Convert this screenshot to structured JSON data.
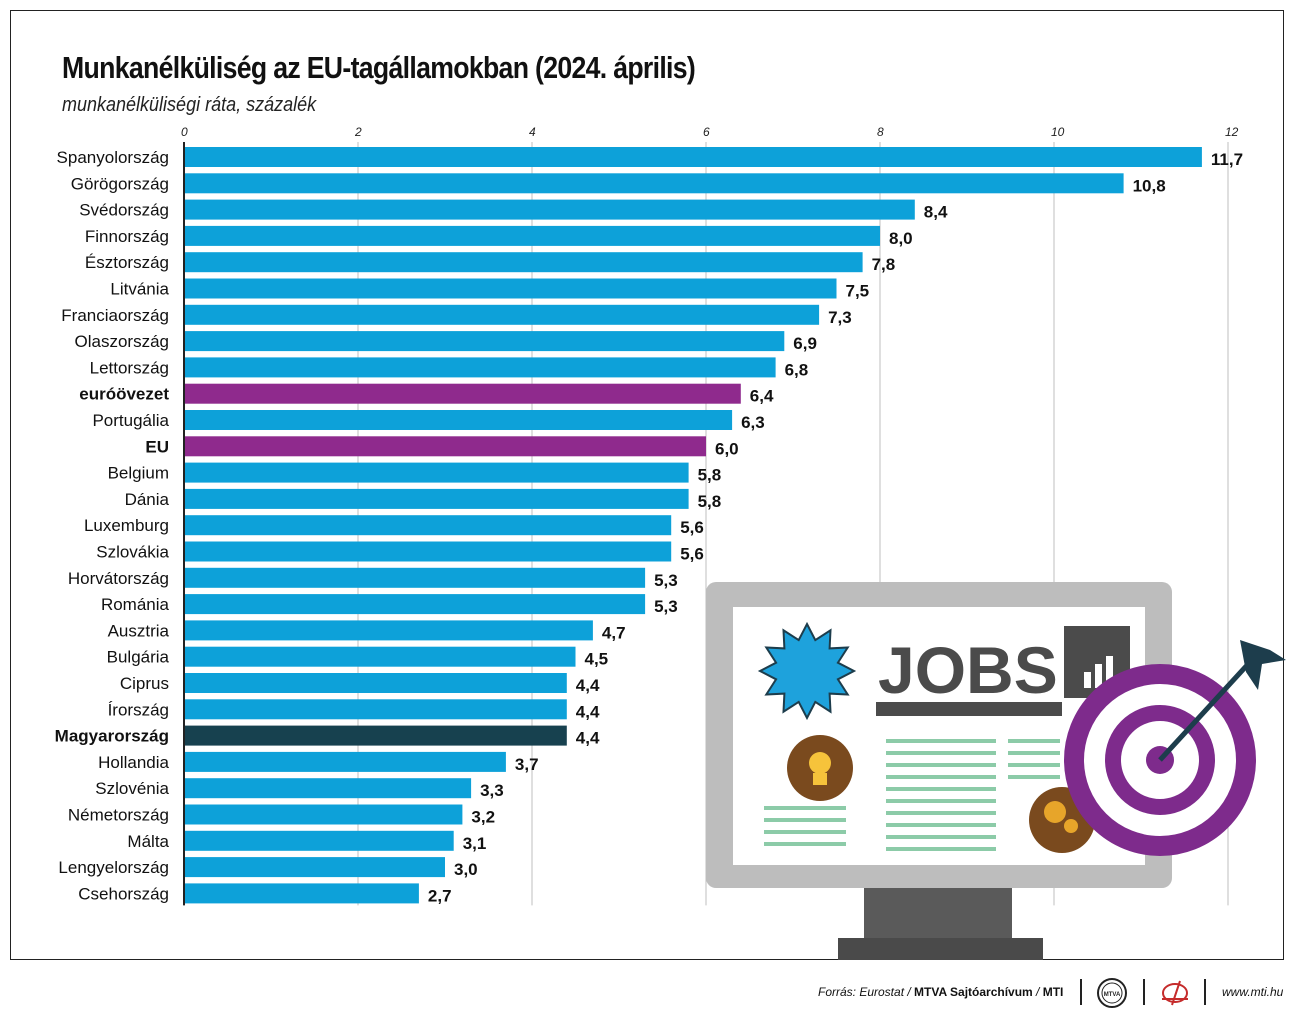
{
  "header": {
    "title": "Munkanélküliség az EU-tagállamokban (2024. április)",
    "subtitle": "munkanélküliségi ráta, százalék"
  },
  "colors": {
    "country": "#0da1d9",
    "aggregate": "#8f2a8d",
    "highlight": "#17414f",
    "accent_purple": "#7e2b8c"
  },
  "chart_data": {
    "type": "bar",
    "orientation": "horizontal",
    "title": "Munkanélküliség az EU-tagállamokban (2024. április)",
    "subtitle": "munkanélküliségi ráta, százalék",
    "xlim": [
      0,
      12
    ],
    "xticks": [
      0,
      2,
      4,
      6,
      8,
      10,
      12
    ],
    "grid": true,
    "categories": [
      "Spanyolország",
      "Görögország",
      "Svédország",
      "Finnország",
      "Észtország",
      "Litvánia",
      "Franciaország",
      "Olaszország",
      "Lettország",
      "euróövezet",
      "Portugália",
      "EU",
      "Belgium",
      "Dánia",
      "Luxemburg",
      "Szlovákia",
      "Horvátország",
      "Románia",
      "Ausztria",
      "Bulgária",
      "Ciprus",
      "Írország",
      "Magyarország",
      "Hollandia",
      "Szlovénia",
      "Németország",
      "Málta",
      "Lengyelország",
      "Csehország"
    ],
    "values": [
      11.7,
      10.8,
      8.4,
      8.0,
      7.8,
      7.5,
      7.3,
      6.9,
      6.8,
      6.4,
      6.3,
      6.0,
      5.8,
      5.8,
      5.6,
      5.6,
      5.3,
      5.3,
      4.7,
      4.5,
      4.4,
      4.4,
      4.4,
      3.7,
      3.3,
      3.2,
      3.1,
      3.0,
      2.7
    ],
    "value_labels": [
      "11,7",
      "10,8",
      "8,4",
      "8,0",
      "7,8",
      "7,5",
      "7,3",
      "6,9",
      "6,8",
      "6,4",
      "6,3",
      "6,0",
      "5,8",
      "5,8",
      "5,6",
      "5,6",
      "5,3",
      "5,3",
      "4,7",
      "4,5",
      "4,4",
      "4,4",
      "4,4",
      "3,7",
      "3,3",
      "3,2",
      "3,1",
      "3,0",
      "2,7"
    ],
    "highlight": {
      "euróövezet": "aggregate",
      "EU": "aggregate",
      "Magyarország": "highlight"
    }
  },
  "illustration": {
    "label": "JOBS",
    "icons": [
      "monitor-icon",
      "star-badge-icon",
      "lightbulb-icon",
      "gears-icon",
      "bar-chart-icon",
      "target-icon",
      "dart-icon"
    ]
  },
  "footer": {
    "source_prefix": "Forrás: Eurostat / ",
    "source_bold": "MTVA Sajtóarchívum",
    "source_sep": " / ",
    "source_mti": "MTI",
    "logo_text": "MTVA",
    "url": "www.mti.hu"
  }
}
